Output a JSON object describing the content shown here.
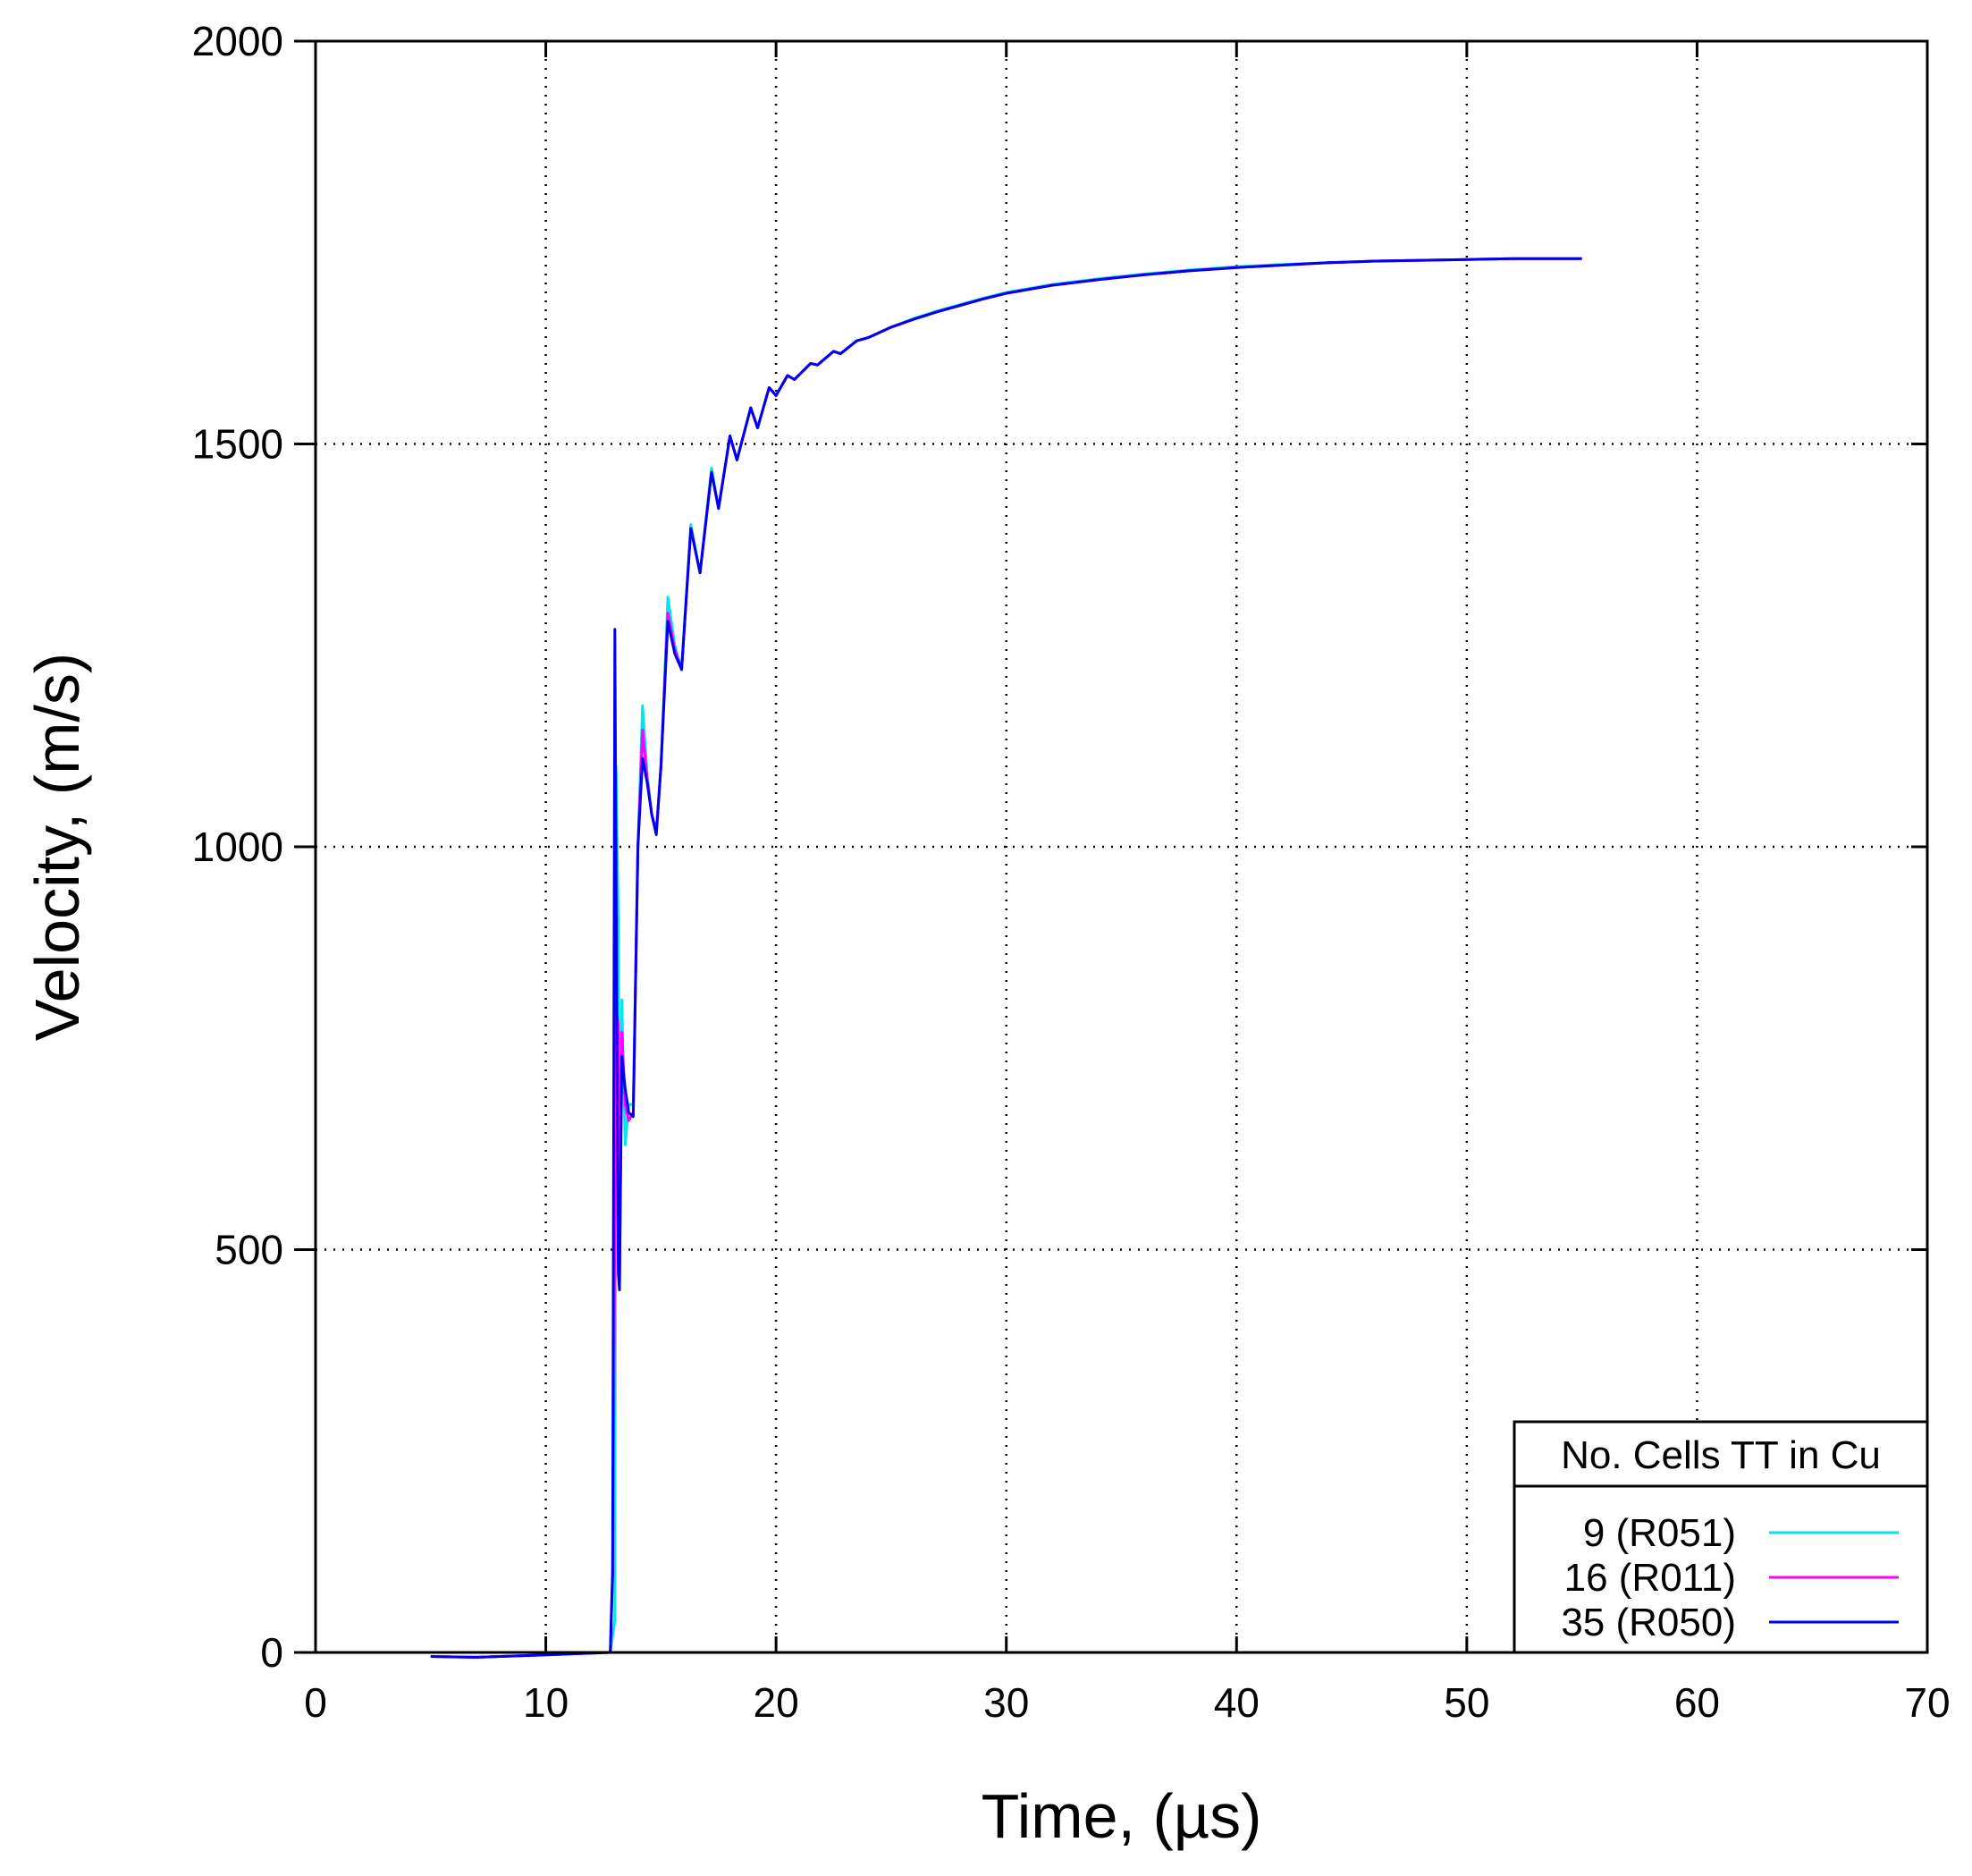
{
  "chart_data": {
    "type": "line",
    "title": "",
    "xlabel": "Time, (µs)",
    "ylabel": "Velocity, (m/s)",
    "xlim": [
      0,
      70
    ],
    "ylim": [
      0,
      2000
    ],
    "x_ticks": [
      0,
      10,
      20,
      30,
      40,
      50,
      60,
      70
    ],
    "y_ticks": [
      0,
      500,
      1000,
      1500,
      2000
    ],
    "grid": true,
    "legend": {
      "title": "No. Cells TT in Cu",
      "placement": "bottom-right"
    },
    "series": [
      {
        "name": "9 (R051)",
        "color": "#00e5ee",
        "points": [
          [
            5,
            -5
          ],
          [
            7,
            -6
          ],
          [
            10,
            -3
          ],
          [
            12.8,
            0
          ],
          [
            13.0,
            40
          ],
          [
            13.05,
            1100
          ],
          [
            13.15,
            900
          ],
          [
            13.2,
            450
          ],
          [
            13.3,
            810
          ],
          [
            13.45,
            630
          ],
          [
            13.6,
            680
          ],
          [
            13.8,
            680
          ],
          [
            14.0,
            1000
          ],
          [
            14.2,
            1175
          ],
          [
            14.4,
            1090
          ],
          [
            14.6,
            1040
          ],
          [
            14.8,
            1020
          ],
          [
            15.0,
            1100
          ],
          [
            15.3,
            1310
          ],
          [
            15.6,
            1250
          ],
          [
            15.9,
            1220
          ],
          [
            16.3,
            1400
          ],
          [
            16.7,
            1340
          ],
          [
            17.2,
            1470
          ],
          [
            17.5,
            1420
          ],
          [
            18.0,
            1510
          ],
          [
            18.3,
            1480
          ],
          [
            18.9,
            1545
          ],
          [
            19.2,
            1520
          ],
          [
            19.7,
            1570
          ],
          [
            20.0,
            1560
          ],
          [
            20.5,
            1585
          ],
          [
            20.8,
            1580
          ],
          [
            21.5,
            1600
          ],
          [
            21.8,
            1598
          ],
          [
            22.5,
            1615
          ],
          [
            22.8,
            1612
          ],
          [
            23.5,
            1628
          ],
          [
            24,
            1632
          ],
          [
            25,
            1645
          ],
          [
            26,
            1656
          ],
          [
            27,
            1665
          ],
          [
            28,
            1673
          ],
          [
            29,
            1681
          ],
          [
            30,
            1688
          ],
          [
            32,
            1698
          ],
          [
            34,
            1705
          ],
          [
            36,
            1711
          ],
          [
            38,
            1716
          ],
          [
            40,
            1720
          ],
          [
            42,
            1723
          ],
          [
            44,
            1725
          ],
          [
            46,
            1727
          ],
          [
            48,
            1728
          ],
          [
            50,
            1729
          ],
          [
            52,
            1730
          ],
          [
            55,
            1730
          ]
        ]
      },
      {
        "name": "16 (R011)",
        "color": "#ff00ff",
        "points": [
          [
            5,
            -5
          ],
          [
            7,
            -6
          ],
          [
            10,
            -3
          ],
          [
            12.8,
            0
          ],
          [
            12.9,
            100
          ],
          [
            12.95,
            300
          ],
          [
            13.05,
            800
          ],
          [
            13.15,
            780
          ],
          [
            13.2,
            460
          ],
          [
            13.3,
            770
          ],
          [
            13.45,
            680
          ],
          [
            13.6,
            660
          ],
          [
            13.8,
            670
          ],
          [
            14.0,
            1000
          ],
          [
            14.2,
            1145
          ],
          [
            14.4,
            1085
          ],
          [
            14.6,
            1040
          ],
          [
            14.8,
            1020
          ],
          [
            15.0,
            1100
          ],
          [
            15.3,
            1290
          ],
          [
            15.6,
            1245
          ],
          [
            15.9,
            1220
          ],
          [
            16.3,
            1395
          ],
          [
            16.7,
            1340
          ],
          [
            17.2,
            1465
          ],
          [
            17.5,
            1420
          ],
          [
            18.0,
            1510
          ],
          [
            18.3,
            1480
          ],
          [
            18.9,
            1545
          ],
          [
            19.2,
            1520
          ],
          [
            19.7,
            1570
          ],
          [
            20.0,
            1560
          ],
          [
            20.5,
            1585
          ],
          [
            20.8,
            1580
          ],
          [
            21.5,
            1600
          ],
          [
            21.8,
            1598
          ],
          [
            22.5,
            1615
          ],
          [
            22.8,
            1612
          ],
          [
            23.5,
            1628
          ],
          [
            24,
            1632
          ],
          [
            25,
            1645
          ],
          [
            26,
            1655
          ],
          [
            27,
            1664
          ],
          [
            28,
            1672
          ],
          [
            29,
            1680
          ],
          [
            30,
            1687
          ],
          [
            32,
            1697
          ],
          [
            34,
            1704
          ],
          [
            36,
            1710
          ],
          [
            38,
            1715
          ],
          [
            40,
            1719
          ],
          [
            42,
            1722
          ],
          [
            44,
            1725
          ],
          [
            46,
            1727
          ],
          [
            48,
            1728
          ],
          [
            50,
            1729
          ],
          [
            52,
            1730
          ],
          [
            55,
            1730
          ]
        ]
      },
      {
        "name": "35 (R050)",
        "color": "#0000ee",
        "points": [
          [
            5,
            -5
          ],
          [
            7,
            -6
          ],
          [
            10,
            -3
          ],
          [
            12.8,
            0
          ],
          [
            12.9,
            100
          ],
          [
            13.0,
            1270
          ],
          [
            13.1,
            700
          ],
          [
            13.15,
            470
          ],
          [
            13.2,
            450
          ],
          [
            13.3,
            740
          ],
          [
            13.45,
            700
          ],
          [
            13.6,
            670
          ],
          [
            13.8,
            665
          ],
          [
            14.0,
            1000
          ],
          [
            14.2,
            1110
          ],
          [
            14.4,
            1080
          ],
          [
            14.6,
            1040
          ],
          [
            14.8,
            1015
          ],
          [
            15.0,
            1100
          ],
          [
            15.3,
            1280
          ],
          [
            15.6,
            1240
          ],
          [
            15.9,
            1220
          ],
          [
            16.3,
            1395
          ],
          [
            16.7,
            1340
          ],
          [
            17.2,
            1465
          ],
          [
            17.5,
            1420
          ],
          [
            18.0,
            1510
          ],
          [
            18.3,
            1480
          ],
          [
            18.9,
            1545
          ],
          [
            19.2,
            1520
          ],
          [
            19.7,
            1570
          ],
          [
            20.0,
            1560
          ],
          [
            20.5,
            1585
          ],
          [
            20.8,
            1580
          ],
          [
            21.5,
            1600
          ],
          [
            21.8,
            1598
          ],
          [
            22.5,
            1615
          ],
          [
            22.8,
            1612
          ],
          [
            23.5,
            1628
          ],
          [
            24,
            1632
          ],
          [
            25,
            1645
          ],
          [
            26,
            1655
          ],
          [
            27,
            1664
          ],
          [
            28,
            1672
          ],
          [
            29,
            1680
          ],
          [
            30,
            1687
          ],
          [
            32,
            1697
          ],
          [
            34,
            1704
          ],
          [
            36,
            1710
          ],
          [
            38,
            1715
          ],
          [
            40,
            1719
          ],
          [
            42,
            1722
          ],
          [
            44,
            1725
          ],
          [
            46,
            1727
          ],
          [
            48,
            1728
          ],
          [
            50,
            1729
          ],
          [
            52,
            1730
          ],
          [
            55,
            1730
          ]
        ]
      }
    ]
  }
}
